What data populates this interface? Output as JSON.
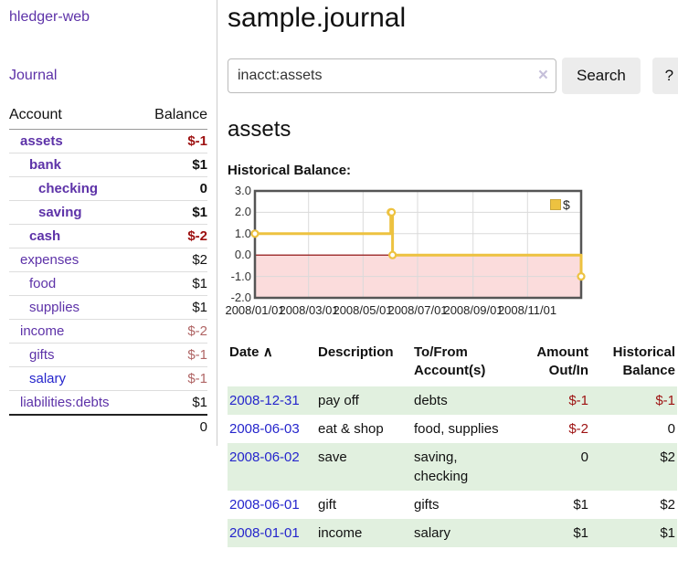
{
  "icons": {
    "sort_asc": "∧",
    "clear": "×",
    "legend_swatch": "yellow-square"
  },
  "sidebar": {
    "app_title": "hledger-web",
    "nav": {
      "journal": "Journal"
    },
    "accounts_table": {
      "headers": {
        "account": "Account",
        "balance": "Balance"
      },
      "rows": [
        {
          "name": "assets",
          "indent": 1,
          "bold": true,
          "name_color": "purple",
          "balance": "$-1",
          "balance_style": "neg-strong"
        },
        {
          "name": "bank",
          "indent": 2,
          "bold": true,
          "name_color": "purple",
          "balance": "$1",
          "balance_style": "pos-strong"
        },
        {
          "name": "checking",
          "indent": 3,
          "bold": true,
          "name_color": "purple",
          "balance": "0",
          "balance_style": "pos-strong"
        },
        {
          "name": "saving",
          "indent": 3,
          "bold": true,
          "name_color": "purple",
          "balance": "$1",
          "balance_style": "pos-strong"
        },
        {
          "name": "cash",
          "indent": 2,
          "bold": true,
          "name_color": "purple",
          "balance": "$-2",
          "balance_style": "neg-strong"
        },
        {
          "name": "expenses",
          "indent": 1,
          "bold": false,
          "name_color": "purple",
          "balance": "$2",
          "balance_style": "pos"
        },
        {
          "name": "food",
          "indent": 2,
          "bold": false,
          "name_color": "purple",
          "balance": "$1",
          "balance_style": "pos"
        },
        {
          "name": "supplies",
          "indent": 2,
          "bold": false,
          "name_color": "purple",
          "balance": "$1",
          "balance_style": "pos"
        },
        {
          "name": "income",
          "indent": 1,
          "bold": false,
          "name_color": "purple",
          "balance": "$-2",
          "balance_style": "neg-muted"
        },
        {
          "name": "gifts",
          "indent": 2,
          "bold": false,
          "name_color": "purple",
          "balance": "$-1",
          "balance_style": "neg-muted"
        },
        {
          "name": "salary",
          "indent": 2,
          "bold": false,
          "name_color": "blue",
          "balance": "$-1",
          "balance_style": "neg-muted"
        },
        {
          "name": "liabilities:debts",
          "indent": 1,
          "bold": false,
          "name_color": "purple",
          "balance": "$1",
          "balance_style": "pos"
        }
      ],
      "total": "0"
    }
  },
  "main": {
    "title": "sample.journal",
    "search": {
      "value": "inacct:assets",
      "button": "Search",
      "help_button": "?"
    },
    "account_heading": "assets",
    "chart_label": "Historical Balance:",
    "register_table": {
      "headers": {
        "date": "Date",
        "description": "Description",
        "tofrom_line1": "To/From",
        "tofrom_line2": "Account(s)",
        "amount_line1": "Amount",
        "amount_line2": "Out/In",
        "hist_line1": "Historical",
        "hist_line2": "Balance"
      },
      "rows": [
        {
          "date": "2008-12-31",
          "description": "pay off",
          "accounts": "debts",
          "amount": "$-1",
          "amount_negative": true,
          "balance": "$-1",
          "balance_negative": true
        },
        {
          "date": "2008-06-03",
          "description": "eat & shop",
          "accounts": "food, supplies",
          "amount": "$-2",
          "amount_negative": true,
          "balance": "0",
          "balance_negative": false
        },
        {
          "date": "2008-06-02",
          "description": "save",
          "accounts": "saving, checking",
          "amount": "0",
          "amount_negative": false,
          "balance": "$2",
          "balance_negative": false
        },
        {
          "date": "2008-06-01",
          "description": "gift",
          "accounts": "gifts",
          "amount": "$1",
          "amount_negative": false,
          "balance": "$2",
          "balance_negative": false
        },
        {
          "date": "2008-01-01",
          "description": "income",
          "accounts": "salary",
          "amount": "$1",
          "amount_negative": false,
          "balance": "$1",
          "balance_negative": false
        }
      ]
    }
  },
  "chart_data": {
    "type": "line",
    "step": true,
    "title": "Historical Balance:",
    "series": [
      {
        "name": "$",
        "color": "#edc240",
        "points": [
          [
            "2008-01-01",
            1
          ],
          [
            "2008-06-01",
            2
          ],
          [
            "2008-06-02",
            2
          ],
          [
            "2008-06-03",
            0
          ],
          [
            "2008-12-31",
            -1
          ]
        ]
      }
    ],
    "x_start": "2008-01-01",
    "x_end": "2008-12-31",
    "x_ticks": [
      {
        "date": "2008-01-01",
        "label": "2008/01/01"
      },
      {
        "date": "2008-03-01",
        "label": "2008/03/01"
      },
      {
        "date": "2008-05-01",
        "label": "2008/05/01"
      },
      {
        "date": "2008-07-01",
        "label": "2008/07/01"
      },
      {
        "date": "2008-09-01",
        "label": "2008/09/01"
      },
      {
        "date": "2008-11-01",
        "label": "2008/11/01"
      }
    ],
    "y_ticks": [
      "3.0",
      "2.0",
      "1.0",
      "0.0",
      "-1.0",
      "-2.0"
    ],
    "ylim": [
      -2,
      3
    ],
    "legend": {
      "label": "$",
      "position": "top-right"
    },
    "negative_region_color": "#fbdcdc",
    "zero_line_color": "#8b0000",
    "grid": true
  }
}
